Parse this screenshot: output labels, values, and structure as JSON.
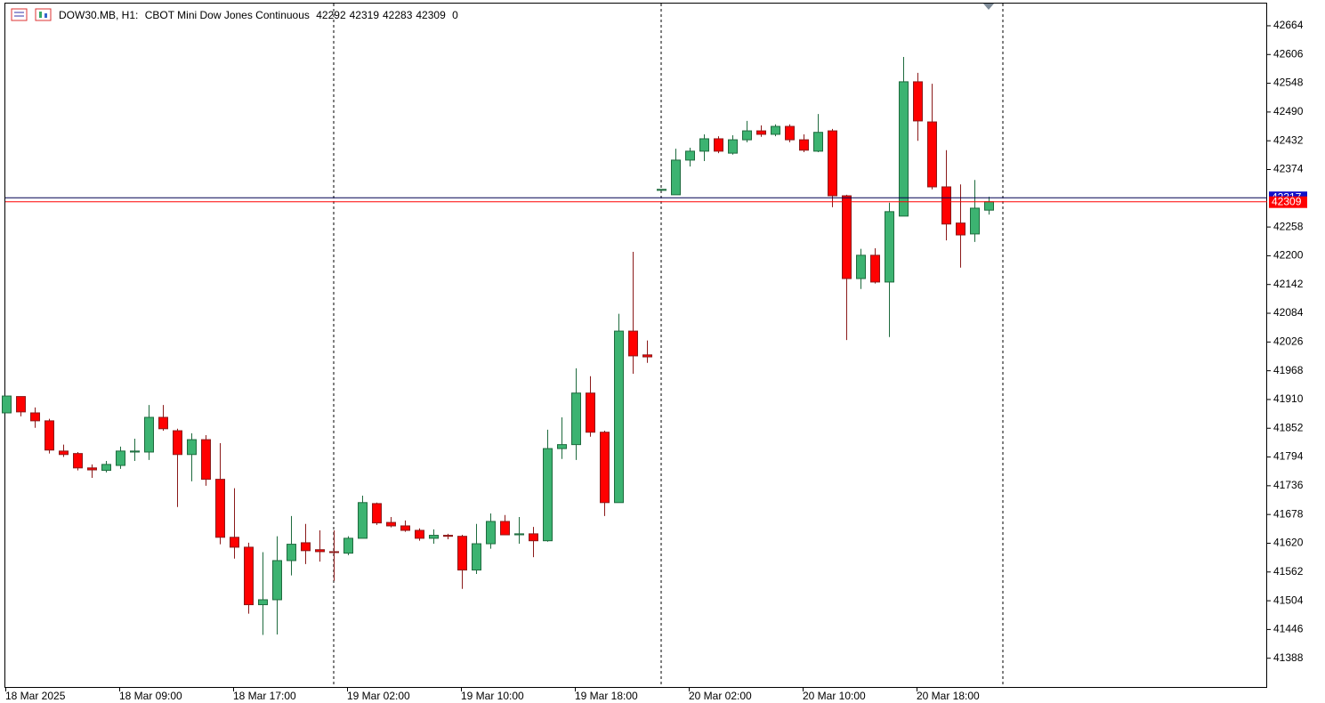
{
  "chart_data": {
    "type": "candlestick",
    "title": "DOW30.MB, H1:",
    "subtitle": "CBOT Mini Dow Jones Continuous",
    "spread": 0,
    "categories": [
      "18 Mar 2025",
      null,
      null,
      null,
      null,
      null,
      null,
      null,
      "18 Mar 09:00",
      null,
      null,
      null,
      null,
      null,
      null,
      null,
      "18 Mar 17:00",
      null,
      null,
      null,
      null,
      null,
      null,
      null,
      "19 Mar 02:00",
      null,
      null,
      null,
      null,
      null,
      null,
      null,
      "19 Mar 10:00",
      null,
      null,
      null,
      null,
      null,
      null,
      null,
      "19 Mar 18:00",
      null,
      null,
      null,
      null,
      null,
      null,
      null,
      "20 Mar 02:00",
      null,
      null,
      null,
      null,
      null,
      null,
      null,
      "20 Mar 10:00",
      null,
      null,
      null,
      null,
      null,
      null,
      null,
      "20 Mar 18:00",
      null,
      null,
      null,
      null,
      null
    ],
    "open": [
      41883,
      41916,
      41883,
      41867,
      41806,
      41801,
      41772,
      41767,
      41777,
      41804,
      41804,
      41874,
      41847,
      41799,
      41829,
      41749,
      41632,
      41612,
      41496,
      41506,
      41585,
      41621,
      41607,
      41603,
      41600,
      41630,
      41700,
      41662,
      41655,
      41646,
      41630,
      41636,
      41634,
      41566,
      41619,
      41664,
      41637,
      41639,
      41625,
      41811,
      41819,
      41923,
      41844,
      41702,
      42048,
      42000,
      42332,
      42323,
      42393,
      42411,
      42436,
      42407,
      42434,
      42452,
      42445,
      42461,
      42434,
      42411,
      42452,
      42321,
      42154,
      42201,
      42147,
      42280,
      42551,
      42470,
      42339,
      42266,
      42244,
      42292
    ],
    "high": [
      41917,
      41916,
      41894,
      41871,
      41819,
      41804,
      41779,
      41786,
      41815,
      41831,
      41899,
      41899,
      41851,
      41842,
      41838,
      41822,
      41731,
      41621,
      41602,
      41634,
      41675,
      41659,
      41646,
      41646,
      41634,
      41716,
      41702,
      41673,
      41666,
      41650,
      41648,
      41639,
      41637,
      41659,
      41680,
      41677,
      41673,
      41653,
      41849,
      41874,
      41973,
      41957,
      41847,
      42083,
      42208,
      42029,
      42334,
      42416,
      42418,
      42445,
      42441,
      42443,
      42472,
      42463,
      42465,
      42465,
      42445,
      42486,
      42456,
      42323,
      42214,
      42215,
      42307,
      42601,
      42569,
      42547,
      42413,
      42344,
      42353,
      42319
    ],
    "low": [
      41883,
      41876,
      41853,
      41801,
      41794,
      41767,
      41752,
      41763,
      41770,
      41786,
      41788,
      41847,
      41693,
      41745,
      41736,
      41618,
      41589,
      41478,
      41435,
      41436,
      41555,
      41578,
      41583,
      41544,
      41596,
      41630,
      41657,
      41652,
      41643,
      41625,
      41619,
      41628,
      41528,
      41558,
      41609,
      41636,
      41619,
      41592,
      41623,
      41790,
      41788,
      41835,
      41675,
      41702,
      41962,
      41984,
      42332,
      42323,
      42380,
      42391,
      42407,
      42404,
      42429,
      42440,
      42441,
      42429,
      42409,
      42409,
      42298,
      42030,
      42133,
      42144,
      42036,
      42280,
      42432,
      42334,
      42231,
      42176,
      42228,
      42283
    ],
    "close": [
      41917,
      41885,
      41867,
      41808,
      41799,
      41772,
      41768,
      41779,
      41806,
      41806,
      41874,
      41851,
      41799,
      41829,
      41749,
      41632,
      41612,
      41496,
      41506,
      41585,
      41618,
      41605,
      41603,
      41602,
      41630,
      41702,
      41661,
      41655,
      41646,
      41630,
      41636,
      41634,
      41566,
      41619,
      41664,
      41637,
      41639,
      41625,
      41811,
      41819,
      41923,
      41844,
      41702,
      42048,
      41998,
      41996,
      42334,
      42393,
      42411,
      42436,
      42411,
      42434,
      42452,
      42445,
      42461,
      42434,
      42413,
      42449,
      42321,
      42154,
      42201,
      42147,
      42289,
      42551,
      42472,
      42339,
      42264,
      42242,
      42296,
      42309
    ],
    "up_color": "#3cb371",
    "up_edge_color": "#1e6b3e",
    "down_color": "#ff0000",
    "down_edge_color": "#8b1a1a",
    "ask": 42317,
    "ask_color": "#1010c8",
    "bid_color": "#ff0000",
    "ylim": [
      41330,
      42716
    ],
    "yticks": [
      41388,
      41446,
      41504,
      41562,
      41620,
      41678,
      41736,
      41794,
      41852,
      41910,
      41968,
      42026,
      42084,
      42142,
      42200,
      42258,
      42374,
      42432,
      42490,
      42548,
      42606,
      42664
    ],
    "grid": false
  }
}
